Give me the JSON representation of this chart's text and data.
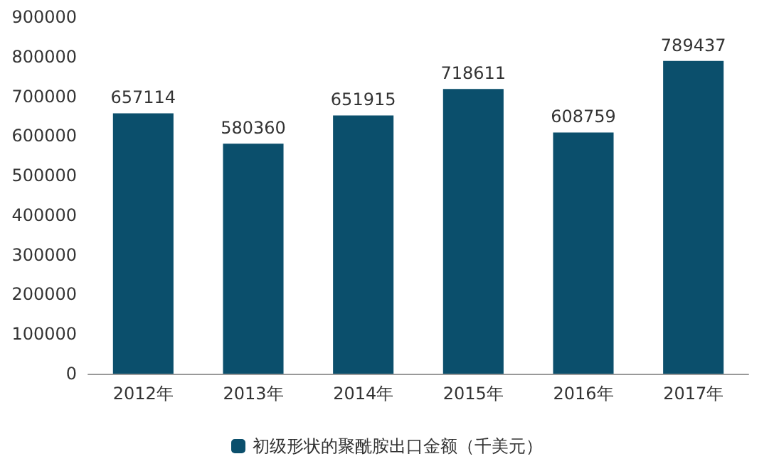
{
  "chart_data": {
    "type": "bar",
    "categories": [
      "2012年",
      "2013年",
      "2014年",
      "2015年",
      "2016年",
      "2017年"
    ],
    "series": [
      {
        "name": "初级形状的聚酰胺出口金额（千美元）",
        "color": "#0b4f6c",
        "values": [
          657114,
          580360,
          651915,
          718611,
          608759,
          789437
        ]
      }
    ],
    "ylim": [
      0,
      900000
    ],
    "yticks": [
      0,
      100000,
      200000,
      300000,
      400000,
      500000,
      600000,
      700000,
      800000,
      900000
    ],
    "grid": false,
    "legend": "bottom",
    "data_labels": true
  }
}
